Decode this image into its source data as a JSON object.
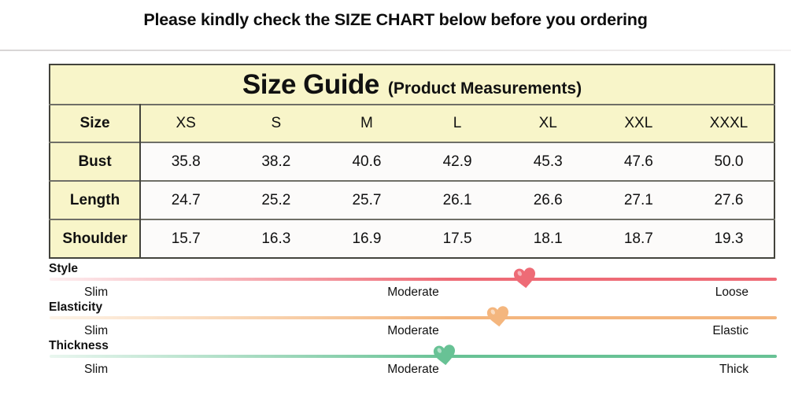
{
  "banner": {
    "text": "Please kindly check the SIZE CHART below before you ordering"
  },
  "size_table": {
    "title": "Size Guide",
    "subtitle": "(Product Measurements)",
    "header_row": [
      "Size",
      "XS",
      "S",
      "M",
      "L",
      "XL",
      "XXL",
      "XXXL"
    ],
    "rows": [
      {
        "label": "Bust",
        "values": [
          "35.8",
          "38.2",
          "40.6",
          "42.9",
          "45.3",
          "47.6",
          "50.0"
        ]
      },
      {
        "label": "Length",
        "values": [
          "24.7",
          "25.2",
          "25.7",
          "26.1",
          "26.6",
          "27.1",
          "27.6"
        ]
      },
      {
        "label": "Shoulder",
        "values": [
          "15.7",
          "16.3",
          "16.9",
          "17.5",
          "18.1",
          "18.7",
          "19.3"
        ]
      }
    ],
    "colors": {
      "header_bg": "#f8f5c9",
      "cell_bg": "#fcfbfa",
      "border_dark": "#43433c",
      "border_inner": "#6f6f67"
    }
  },
  "attribute_scales": [
    {
      "name": "Style",
      "left_label": "Slim",
      "mid_label": "Moderate",
      "right_label": "Loose",
      "color": "#ee6b76",
      "color_faint": "#fdeef0",
      "marker_percent": 65.4
    },
    {
      "name": "Elasticity",
      "left_label": "Slim",
      "mid_label": "Moderate",
      "right_label": "Elastic",
      "color": "#f4b67e",
      "color_faint": "#fdf3e7",
      "marker_percent": 61.7
    },
    {
      "name": "Thickness",
      "left_label": "Slim",
      "mid_label": "Moderate",
      "right_label": "Thick",
      "color": "#68c295",
      "color_faint": "#e9f6ef",
      "marker_percent": 54.3
    }
  ]
}
